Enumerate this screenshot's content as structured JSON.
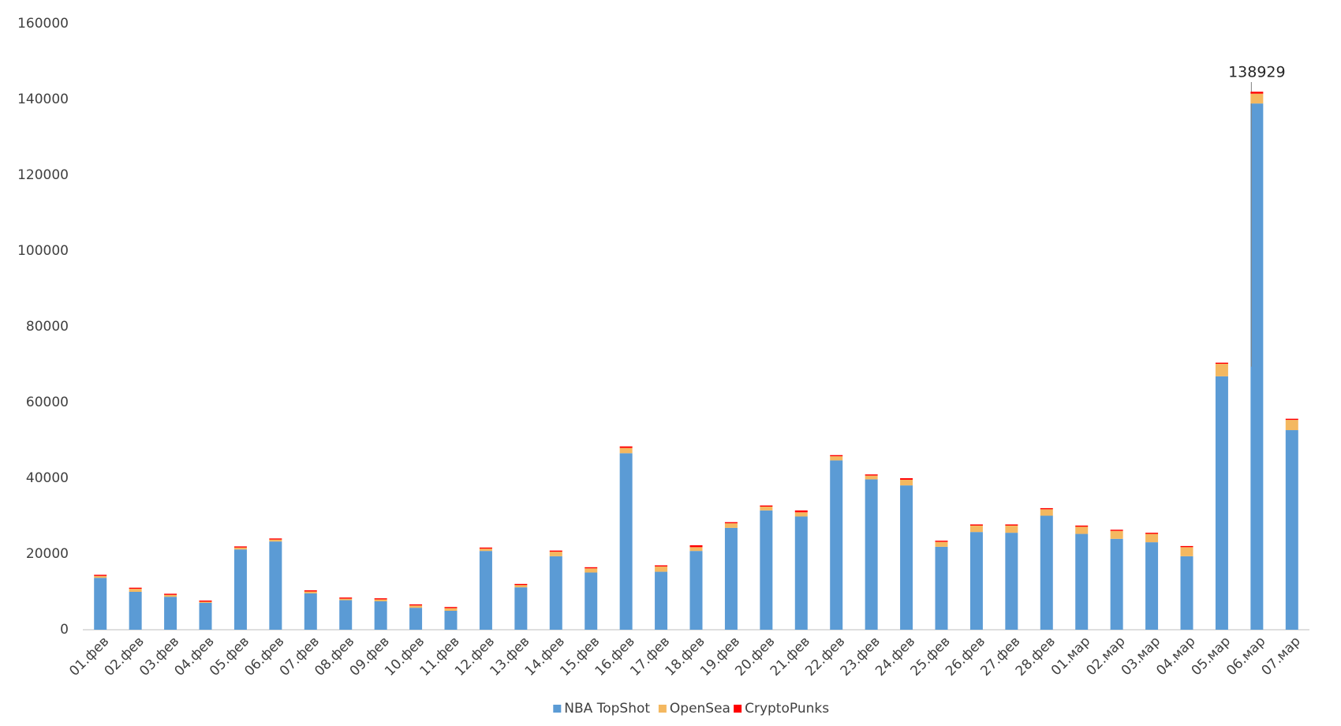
{
  "chart_data": {
    "type": "stacked_bar",
    "categories": [
      "01.фев",
      "02.фев",
      "03.фев",
      "04.фев",
      "05.фев",
      "06.фев",
      "07.фев",
      "08.фев",
      "09.фев",
      "10.фев",
      "11.фев",
      "12.фев",
      "13.фев",
      "14.фев",
      "15.фев",
      "16.фев",
      "17.фев",
      "18.фев",
      "19.фев",
      "20.фев",
      "21.фев",
      "22.фев",
      "23.фев",
      "24.фев",
      "25.фев",
      "26.фев",
      "27.фев",
      "28.фев",
      "01.мар",
      "02.мар",
      "03.мар",
      "04.мар",
      "05.мар",
      "06.мар",
      "07.мар"
    ],
    "series": [
      {
        "name": "NBA TopShot",
        "color": "#5b9bd5",
        "values": [
          13700,
          10000,
          8700,
          7100,
          21200,
          23300,
          9600,
          7800,
          7500,
          5800,
          5000,
          20800,
          11200,
          19400,
          15100,
          46600,
          15300,
          20800,
          26900,
          31500,
          29900,
          44700,
          39700,
          38100,
          21900,
          25800,
          25600,
          30100,
          25300,
          24000,
          23100,
          19400,
          66900,
          138929,
          52700
        ],
        "value_labels": [
          null,
          null,
          null,
          null,
          null,
          null,
          null,
          null,
          null,
          null,
          null,
          null,
          null,
          null,
          null,
          null,
          null,
          null,
          null,
          null,
          null,
          null,
          null,
          null,
          null,
          null,
          null,
          null,
          null,
          null,
          null,
          null,
          null,
          "138929",
          null
        ]
      },
      {
        "name": "OpenSea",
        "color": "#f4b860",
        "values": [
          500,
          800,
          500,
          300,
          500,
          500,
          500,
          400,
          500,
          600,
          700,
          600,
          600,
          1200,
          1100,
          1400,
          1400,
          1000,
          1200,
          1000,
          1100,
          1100,
          1000,
          1500,
          1300,
          1700,
          1900,
          1700,
          1900,
          2100,
          2200,
          2400,
          3300,
          2600,
          2700
        ]
      },
      {
        "name": "CryptoPunks",
        "color": "#ff0000",
        "values": [
          300,
          300,
          300,
          300,
          300,
          300,
          300,
          300,
          300,
          300,
          300,
          300,
          300,
          300,
          300,
          400,
          300,
          500,
          300,
          300,
          500,
          300,
          300,
          400,
          300,
          300,
          300,
          300,
          300,
          300,
          300,
          300,
          300,
          500,
          300
        ]
      }
    ],
    "ylim": [
      0,
      160000
    ],
    "yticks": [
      0,
      20000,
      40000,
      60000,
      80000,
      100000,
      120000,
      140000,
      160000
    ],
    "grid": false,
    "legend": "bottom"
  }
}
